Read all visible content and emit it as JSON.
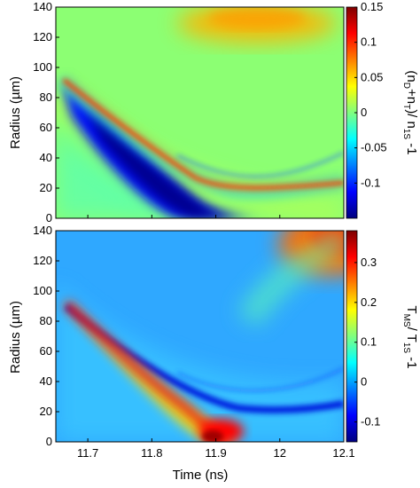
{
  "chart_data": [
    {
      "type": "heatmap",
      "title": "",
      "xlabel": "",
      "ylabel": "Radius (µm)",
      "xlim": [
        11.65,
        12.1
      ],
      "ylim": [
        0,
        140
      ],
      "yticks": [
        "0",
        "20",
        "40",
        "60",
        "80",
        "100",
        "120",
        "140"
      ],
      "colorbar": {
        "label_main": "(n",
        "label_sub1": "D",
        "label_plus": "+n",
        "label_sub2": "T",
        "label_div": ")/ n",
        "label_sub3": "1S",
        "label_tail": " -1",
        "range": [
          -0.15,
          0.15
        ],
        "ticks": [
          "0.15",
          "0.1",
          "0.05",
          "0",
          "-0.05",
          "-0.1"
        ],
        "tick_values": [
          0.15,
          0.1,
          0.05,
          0,
          -0.05,
          -0.1
        ]
      },
      "features": [
        {
          "kind": "negative-trough",
          "path": [
            [
              11.65,
              96
            ],
            [
              11.75,
              60
            ],
            [
              11.85,
              28
            ],
            [
              11.92,
              10
            ],
            [
              11.97,
              4
            ]
          ],
          "level": -0.15
        },
        {
          "kind": "positive-ridge",
          "path": [
            [
              11.67,
              92
            ],
            [
              11.78,
              58
            ],
            [
              11.88,
              28
            ],
            [
              11.96,
              19
            ],
            [
              12.1,
              22
            ]
          ],
          "level": 0.15
        },
        {
          "kind": "positive-region",
          "center": [
            11.95,
            132
          ],
          "level": 0.08
        }
      ]
    },
    {
      "type": "heatmap",
      "title": "",
      "xlabel": "Time (ns)",
      "ylabel": "Radius (µm)",
      "xlim": [
        11.65,
        12.1
      ],
      "ylim": [
        0,
        140
      ],
      "xticks": [
        "11.7",
        "11.8",
        "11.9",
        "12",
        "12.1"
      ],
      "xtick_values": [
        11.7,
        11.8,
        11.9,
        12.0,
        12.1
      ],
      "yticks": [
        "0",
        "20",
        "40",
        "60",
        "80",
        "100",
        "120",
        "140"
      ],
      "colorbar": {
        "label_main": "T",
        "label_sub1": "MS",
        "label_div": "/ T",
        "label_sub2": "1S",
        "label_tail": " -1",
        "range": [
          -0.15,
          0.38
        ],
        "ticks": [
          "0.3",
          "0.2",
          "0.1",
          "0",
          "-0.1"
        ],
        "tick_values": [
          0.3,
          0.2,
          0.1,
          0,
          -0.1
        ]
      },
      "features": [
        {
          "kind": "positive-ridge",
          "path": [
            [
              11.65,
              96
            ],
            [
              11.75,
              60
            ],
            [
              11.85,
              25
            ],
            [
              11.9,
              8
            ],
            [
              11.93,
              0
            ]
          ],
          "level": 0.38
        },
        {
          "kind": "negative-trough",
          "path": [
            [
              11.67,
              92
            ],
            [
              11.8,
              55
            ],
            [
              11.9,
              30
            ],
            [
              11.98,
              22
            ],
            [
              12.1,
              24
            ]
          ],
          "level": -0.15
        },
        {
          "kind": "positive-region",
          "center": [
            12.08,
            135
          ],
          "level": 0.3
        }
      ]
    }
  ]
}
